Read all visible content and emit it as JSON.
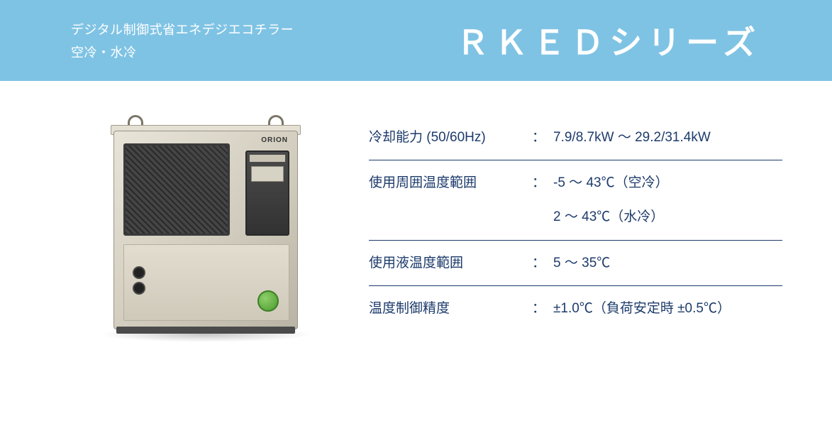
{
  "header": {
    "subtitle_line1": "デジタル制御式省エネデジエコチラー",
    "subtitle_line2": "空冷・水冷",
    "title": "ＲＫＥＤシリーズ",
    "bg_color": "#7fc3e4",
    "text_color": "#ffffff"
  },
  "photo": {
    "brand_text": "ORION"
  },
  "specs": {
    "text_color": "#1d3b6b",
    "border_color": "#1d3b6b",
    "rows": [
      {
        "label": "冷却能力 (50/60Hz)",
        "colon": "：",
        "value_lines": [
          "7.9/8.7kW ～ 29.2/31.4kW"
        ]
      },
      {
        "label": "使用周囲温度範囲",
        "colon": "：",
        "value_lines": [
          "-5 ～ 43℃（空冷）",
          "2 ～ 43℃（水冷）"
        ]
      },
      {
        "label": "使用液温度範囲",
        "colon": "：",
        "value_lines": [
          "5 ～ 35℃"
        ]
      },
      {
        "label": "温度制御精度",
        "colon": "：",
        "value_lines": [
          "±1.0℃（負荷安定時 ±0.5℃）"
        ]
      }
    ]
  }
}
